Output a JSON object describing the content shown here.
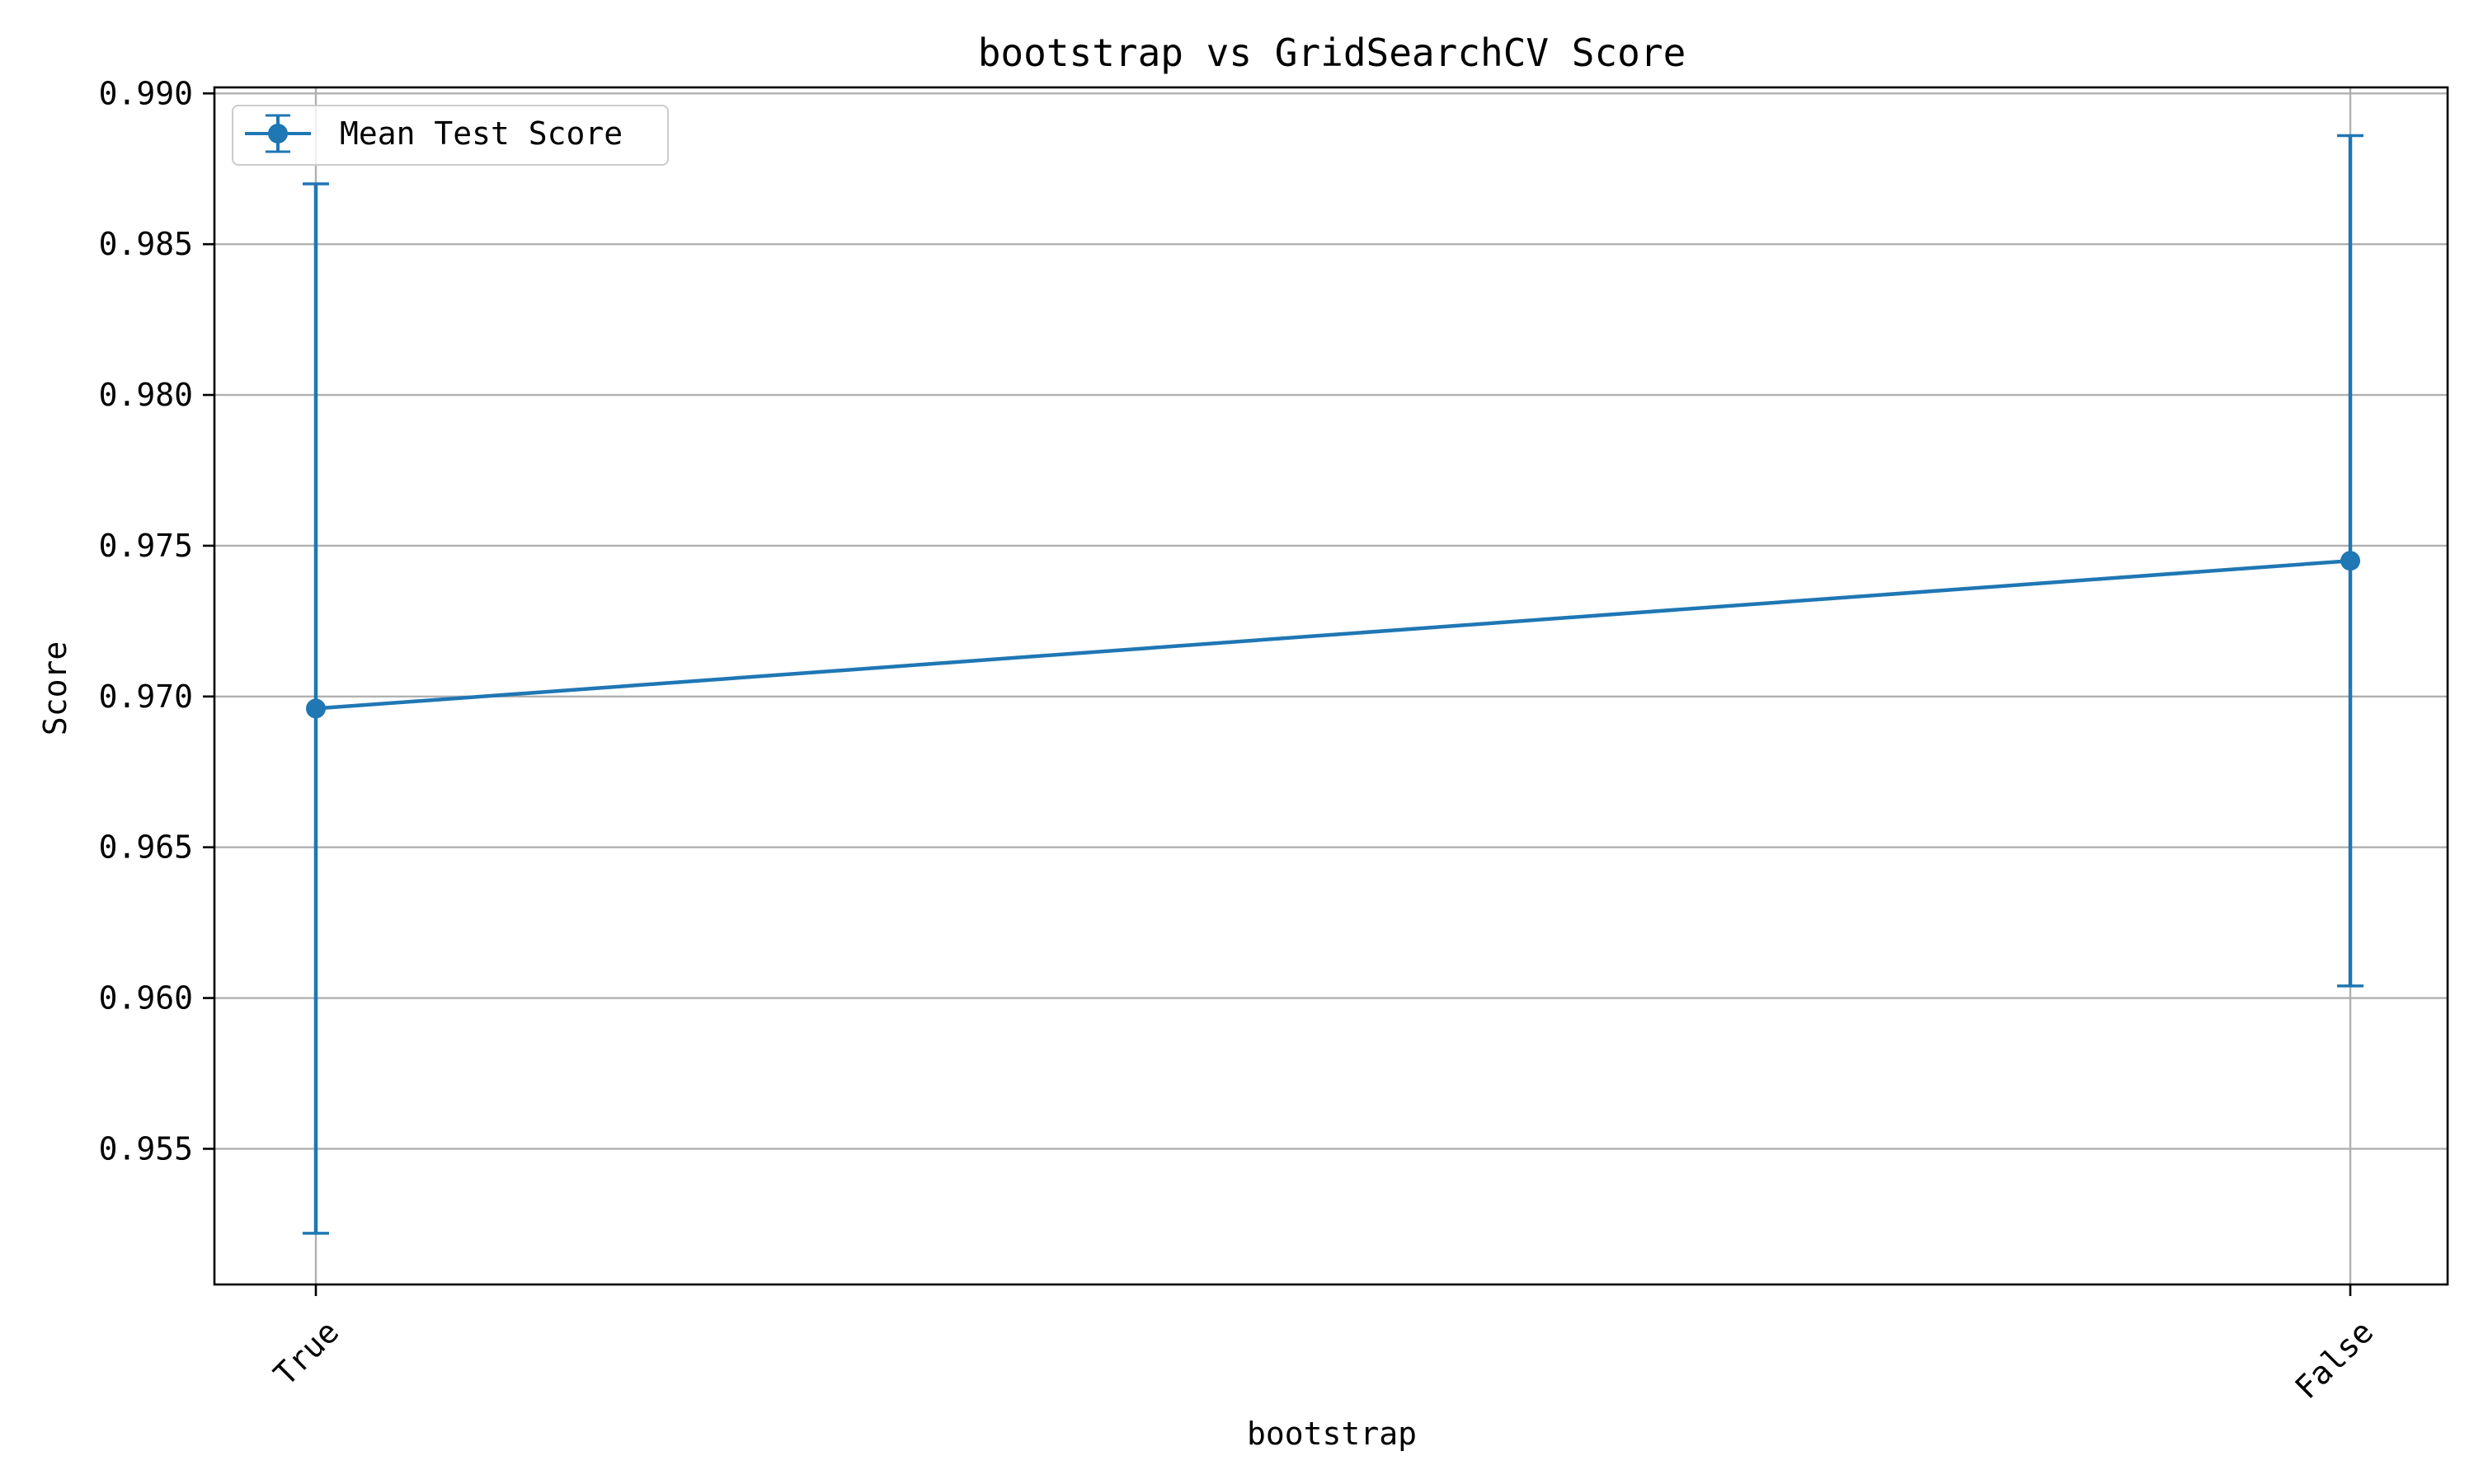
{
  "chart_data": {
    "type": "line",
    "title": "bootstrap vs GridSearchCV Score",
    "xlabel": "bootstrap",
    "ylabel": "Score",
    "categories": [
      "True",
      "False"
    ],
    "series": [
      {
        "name": "Mean Test Score",
        "values": [
          0.9696,
          0.9745
        ],
        "error": [
          0.0174,
          0.0141
        ],
        "color": "#1f77b4",
        "marker": "circle"
      }
    ],
    "ylim": [
      0.9505,
      0.9902
    ],
    "yticks": [
      "0.955",
      "0.960",
      "0.965",
      "0.970",
      "0.975",
      "0.980",
      "0.985",
      "0.990"
    ],
    "grid": true,
    "legend": "upper-left",
    "xtick_rotation": 45
  }
}
